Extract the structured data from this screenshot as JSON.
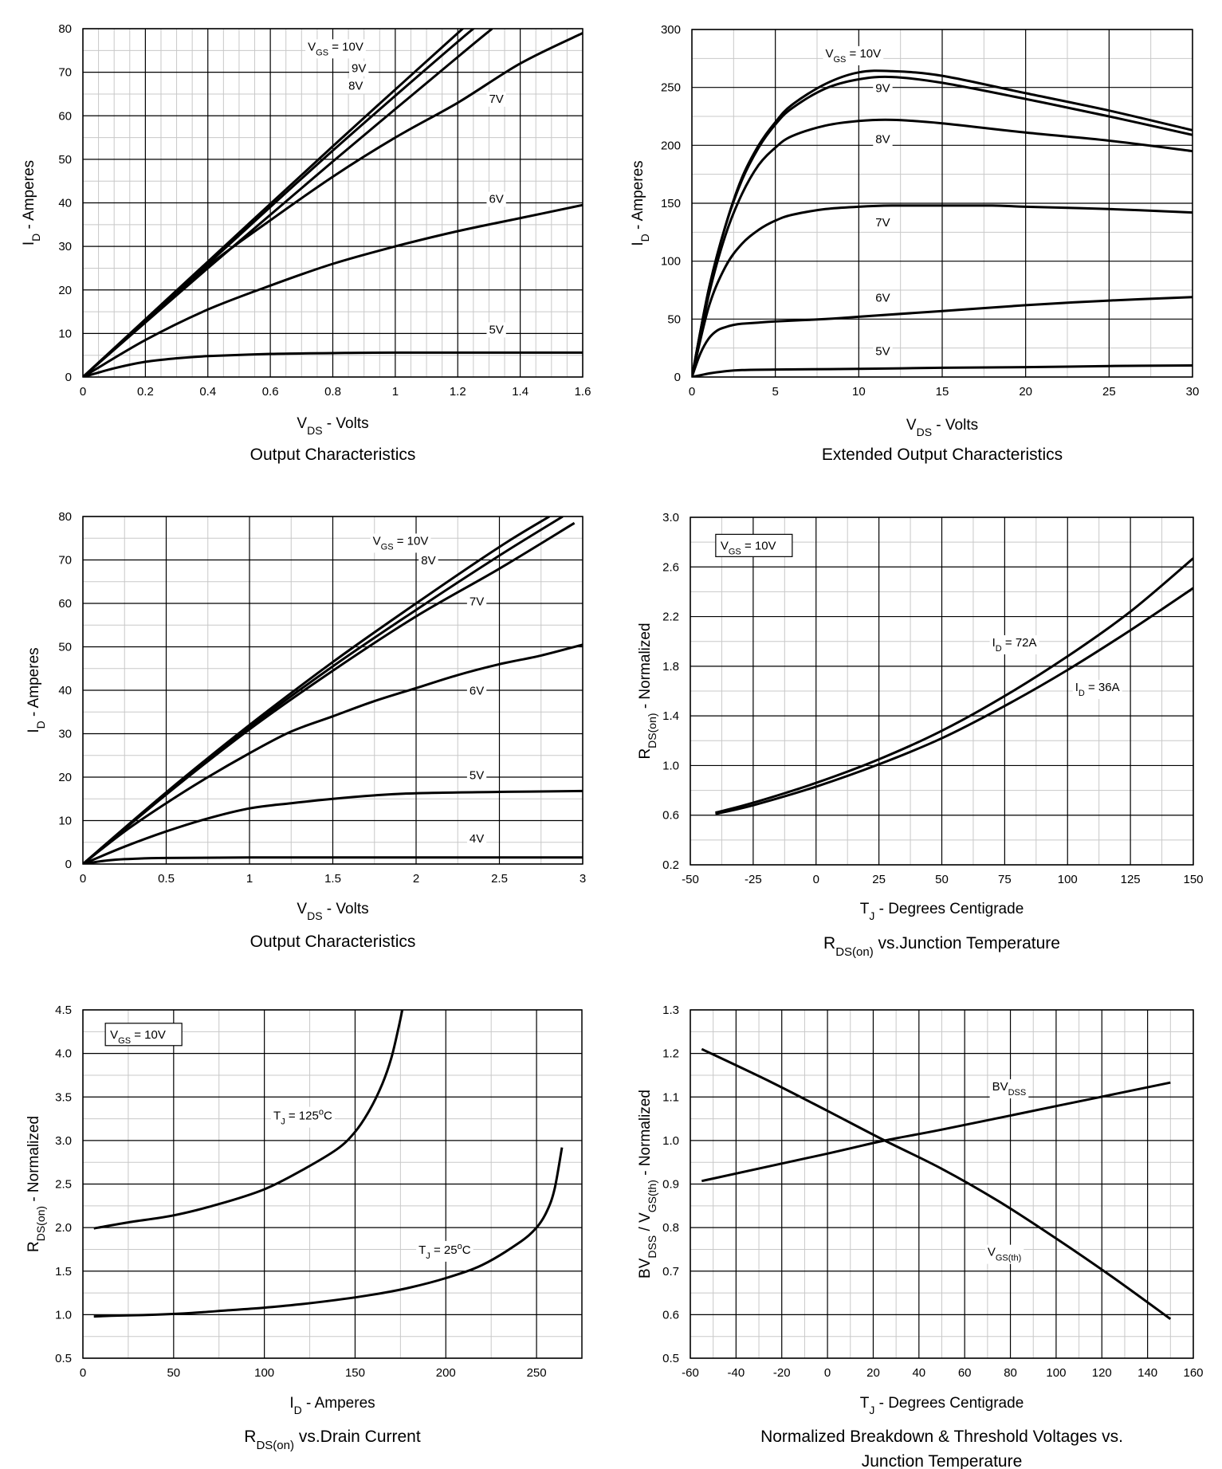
{
  "chart_data": [
    {
      "type": "line",
      "title": "Output Characteristics",
      "xlabel": {
        "main": "V",
        "sub": "DS",
        "rest": " - Volts"
      },
      "ylabel": {
        "main": "I",
        "sub": "D",
        "rest": " - Amperes"
      },
      "xlim": [
        0,
        1.6
      ],
      "ylim": [
        0,
        80
      ],
      "xticks": [
        "0",
        "0.2",
        "0.4",
        "0.6",
        "0.8",
        "1",
        "1.2",
        "1.4",
        "1.6"
      ],
      "xtick_values": [
        0,
        0.2,
        0.4,
        0.6,
        0.8,
        1,
        1.2,
        1.4,
        1.6
      ],
      "yticks": [
        "0",
        "10",
        "20",
        "30",
        "40",
        "50",
        "60",
        "70",
        "80"
      ],
      "ytick_values": [
        0,
        10,
        20,
        30,
        40,
        50,
        60,
        70,
        80
      ],
      "series": [
        {
          "name": "VGS = 10V",
          "x": [
            0,
            0.4,
            0.8,
            1.2,
            1.25
          ],
          "y": [
            0,
            26.5,
            53,
            79,
            82
          ]
        },
        {
          "name": "9V",
          "x": [
            0,
            0.4,
            0.8,
            1.2,
            1.27
          ],
          "y": [
            0,
            26,
            52,
            77,
            81
          ]
        },
        {
          "name": "8V",
          "x": [
            0,
            0.4,
            0.8,
            1.2,
            1.31
          ],
          "y": [
            0,
            25,
            49.5,
            73.5,
            80
          ]
        },
        {
          "name": "7V",
          "x": [
            0,
            0.2,
            0.4,
            0.6,
            0.8,
            1.0,
            1.2,
            1.4,
            1.6
          ],
          "y": [
            0,
            13,
            25.5,
            36,
            46,
            55,
            63,
            72,
            79
          ]
        },
        {
          "name": "6V",
          "x": [
            0,
            0.2,
            0.4,
            0.6,
            0.8,
            1.0,
            1.2,
            1.4,
            1.6
          ],
          "y": [
            0,
            8.5,
            15.5,
            21,
            26,
            30,
            33.5,
            36.5,
            39.5
          ]
        },
        {
          "name": "5V",
          "x": [
            0,
            0.1,
            0.2,
            0.3,
            0.4,
            0.6,
            0.8,
            1.0,
            1.6
          ],
          "y": [
            0,
            2,
            3.5,
            4.3,
            4.8,
            5.3,
            5.5,
            5.6,
            5.6
          ]
        }
      ],
      "annotations": [
        {
          "text": "V",
          "sub": "GS",
          "rest": " = 10V",
          "x": 0.72,
          "y": 75
        },
        {
          "text": "9V",
          "x": 0.86,
          "y": 70
        },
        {
          "text": "8V",
          "x": 0.85,
          "y": 66
        },
        {
          "text": "7V",
          "x": 1.3,
          "y": 63
        },
        {
          "text": "6V",
          "x": 1.3,
          "y": 40
        },
        {
          "text": "5V",
          "x": 1.3,
          "y": 10
        }
      ]
    },
    {
      "type": "line",
      "title": "Extended Output Characteristics",
      "xlabel": {
        "main": "V",
        "sub": "DS",
        "rest": " - Volts"
      },
      "ylabel": {
        "main": "I",
        "sub": "D",
        "rest": " - Amperes"
      },
      "xlim": [
        0,
        30
      ],
      "ylim": [
        0,
        300
      ],
      "xticks": [
        "0",
        "5",
        "10",
        "15",
        "20",
        "25",
        "30"
      ],
      "xtick_values": [
        0,
        5,
        10,
        15,
        20,
        25,
        30
      ],
      "yticks": [
        "0",
        "50",
        "100",
        "150",
        "200",
        "250",
        "300"
      ],
      "ytick_values": [
        0,
        50,
        100,
        150,
        200,
        250,
        300
      ],
      "series": [
        {
          "name": "VGS = 10V",
          "x": [
            0,
            1,
            2,
            3,
            4,
            5,
            6,
            8,
            10,
            12,
            15,
            20,
            25,
            30
          ],
          "y": [
            0,
            75,
            130,
            172,
            200,
            220,
            235,
            253,
            263,
            264,
            260,
            245,
            230,
            213
          ]
        },
        {
          "name": "9V",
          "x": [
            0,
            1,
            2,
            3,
            4,
            5,
            6,
            8,
            10,
            12,
            15,
            20,
            25,
            30
          ],
          "y": [
            0,
            75,
            130,
            170,
            198,
            218,
            232,
            249,
            257,
            259,
            254,
            240,
            225,
            209
          ]
        },
        {
          "name": "8V",
          "x": [
            0,
            1,
            2,
            3,
            4,
            5,
            6,
            8,
            10,
            12,
            15,
            20,
            25,
            30
          ],
          "y": [
            0,
            70,
            122,
            158,
            183,
            198,
            208,
            217,
            221,
            222,
            219,
            211,
            204,
            195
          ]
        },
        {
          "name": "7V",
          "x": [
            0,
            1,
            2,
            3,
            4,
            5,
            6,
            8,
            10,
            12,
            15,
            18,
            20,
            25,
            30
          ],
          "y": [
            0,
            60,
            95,
            115,
            127,
            135,
            140,
            145,
            147,
            148,
            148,
            148,
            147,
            145,
            142
          ]
        },
        {
          "name": "6V",
          "x": [
            0,
            0.5,
            1,
            1.5,
            2,
            2.5,
            3,
            4,
            5,
            8,
            10,
            15,
            20,
            25,
            30
          ],
          "y": [
            0,
            20,
            33,
            40,
            43,
            45,
            46,
            47,
            48,
            50,
            52,
            57,
            62,
            66,
            69
          ]
        },
        {
          "name": "5V",
          "x": [
            0,
            1,
            2,
            3,
            5,
            10,
            15,
            20,
            25,
            30
          ],
          "y": [
            0,
            3,
            5,
            6,
            6.5,
            7,
            8,
            8.5,
            9.5,
            10
          ]
        }
      ],
      "annotations": [
        {
          "text": "V",
          "sub": "GS",
          "rest": " = 10V",
          "x": 8,
          "y": 276
        },
        {
          "text": "9V",
          "x": 11,
          "y": 246
        },
        {
          "text": "8V",
          "x": 11,
          "y": 202
        },
        {
          "text": "7V",
          "x": 11,
          "y": 130
        },
        {
          "text": "6V",
          "x": 11,
          "y": 65
        },
        {
          "text": "5V",
          "x": 11,
          "y": 19
        }
      ]
    },
    {
      "type": "line",
      "title": "Output Characteristics",
      "xlabel": {
        "main": "V",
        "sub": "DS",
        "rest": " - Volts"
      },
      "ylabel": {
        "main": "I",
        "sub": "D",
        "rest": " - Amperes"
      },
      "xlim": [
        0,
        3
      ],
      "ylim": [
        0,
        80
      ],
      "xticks": [
        "0",
        "0.5",
        "1",
        "1.5",
        "2",
        "2.5",
        "3"
      ],
      "xtick_values": [
        0,
        0.5,
        1,
        1.5,
        2,
        2.5,
        3
      ],
      "yticks": [
        "0",
        "10",
        "20",
        "30",
        "40",
        "50",
        "60",
        "70",
        "80"
      ],
      "ytick_values": [
        0,
        10,
        20,
        30,
        40,
        50,
        60,
        70,
        80
      ],
      "series": [
        {
          "name": "VGS = 10V",
          "x": [
            0,
            0.5,
            1,
            1.5,
            2,
            2.5,
            2.8
          ],
          "y": [
            0,
            16.5,
            32,
            46.5,
            60,
            73,
            80
          ]
        },
        {
          "name": "8V",
          "x": [
            0,
            0.5,
            1,
            1.5,
            2,
            2.5,
            2.88
          ],
          "y": [
            0,
            16.3,
            31.5,
            45.5,
            58.5,
            71,
            80
          ]
        },
        {
          "name": "7V",
          "x": [
            0,
            0.5,
            1,
            1.5,
            2,
            2.5,
            2.95
          ],
          "y": [
            0,
            16,
            31,
            44.5,
            57,
            68,
            78.5
          ]
        },
        {
          "name": "6V",
          "x": [
            0,
            0.25,
            0.5,
            0.75,
            1,
            1.25,
            1.5,
            1.75,
            2,
            2.25,
            2.5,
            2.75,
            3
          ],
          "y": [
            0,
            7.5,
            14,
            20,
            25.5,
            30.5,
            34,
            37.5,
            40.5,
            43.5,
            46,
            48,
            50.5
          ]
        },
        {
          "name": "5V",
          "x": [
            0,
            0.25,
            0.5,
            0.75,
            1,
            1.25,
            1.5,
            1.75,
            2,
            2.5,
            3
          ],
          "y": [
            0,
            4,
            7.5,
            10.5,
            12.8,
            14,
            15,
            15.8,
            16.3,
            16.6,
            16.8
          ]
        },
        {
          "name": "4V",
          "x": [
            0,
            0.1,
            0.2,
            0.3,
            0.5,
            1,
            2,
            3
          ],
          "y": [
            0,
            0.6,
            1,
            1.2,
            1.4,
            1.5,
            1.5,
            1.5
          ]
        }
      ],
      "annotations": [
        {
          "text": "V",
          "sub": "GS",
          "rest": " = 10V",
          "x": 1.74,
          "y": 73.5
        },
        {
          "text": "8V",
          "x": 2.03,
          "y": 69
        },
        {
          "text": "7V",
          "x": 2.32,
          "y": 59.5
        },
        {
          "text": "6V",
          "x": 2.32,
          "y": 39
        },
        {
          "text": "5V",
          "x": 2.32,
          "y": 19.5
        },
        {
          "text": "4V",
          "x": 2.32,
          "y": 5
        }
      ]
    },
    {
      "type": "line",
      "title": {
        "main": "R",
        "sub": "DS(on)",
        "rest": "  vs.Junction Temperature"
      },
      "xlabel": {
        "main": "T",
        "sub": "J",
        "rest": " - Degrees Centigrade"
      },
      "ylabel": {
        "main": "R",
        "sub": "DS(on)",
        "rest": " - Normalized"
      },
      "xlim": [
        -50,
        150
      ],
      "ylim": [
        0.2,
        3.0
      ],
      "xticks": [
        "-50",
        "-25",
        "0",
        "25",
        "50",
        "75",
        "100",
        "125",
        "150"
      ],
      "xtick_values": [
        -50,
        -25,
        0,
        25,
        50,
        75,
        100,
        125,
        150
      ],
      "yticks": [
        "0.2",
        "0.6",
        "1.0",
        "1.4",
        "1.8",
        "2.2",
        "2.6",
        "3.0"
      ],
      "ytick_values": [
        0.2,
        0.6,
        1.0,
        1.4,
        1.8,
        2.2,
        2.6,
        3.0
      ],
      "series": [
        {
          "name": "ID = 72A",
          "x": [
            -40,
            -25,
            0,
            25,
            50,
            75,
            100,
            125,
            150
          ],
          "y": [
            0.62,
            0.7,
            0.86,
            1.05,
            1.28,
            1.56,
            1.88,
            2.24,
            2.67
          ]
        },
        {
          "name": "ID = 36A",
          "x": [
            -40,
            -25,
            0,
            25,
            50,
            75,
            100,
            125,
            150
          ],
          "y": [
            0.61,
            0.68,
            0.83,
            1.01,
            1.22,
            1.48,
            1.77,
            2.09,
            2.43
          ]
        }
      ],
      "legend_box": {
        "text": "V",
        "sub": "GS",
        "rest": " = 10V",
        "x": -38,
        "y": 2.76
      },
      "annotations": [
        {
          "text": "I",
          "sub": "D",
          "rest": " = 72A",
          "x": 70,
          "y": 1.96
        },
        {
          "text": "I",
          "sub": "D",
          "rest": " = 36A",
          "x": 103,
          "y": 1.6
        }
      ]
    },
    {
      "type": "line",
      "title": {
        "main": "R",
        "sub": "DS(on)",
        "rest": " vs.Drain Current"
      },
      "xlabel": {
        "main": "I",
        "sub": "D",
        "rest": " - Amperes"
      },
      "ylabel": {
        "main": "R",
        "sub": "DS(on)",
        "rest": " - Normalized"
      },
      "xlim": [
        0,
        275
      ],
      "ylim": [
        0.5,
        4.5
      ],
      "xticks": [
        "0",
        "50",
        "100",
        "150",
        "200",
        "250"
      ],
      "xtick_values": [
        0,
        50,
        100,
        150,
        200,
        250
      ],
      "yticks": [
        "0.5",
        "1.0",
        "1.5",
        "2.0",
        "2.5",
        "3.0",
        "3.5",
        "4.0",
        "4.5"
      ],
      "ytick_values": [
        0.5,
        1.0,
        1.5,
        2.0,
        2.5,
        3.0,
        3.5,
        4.0,
        4.5
      ],
      "series": [
        {
          "name": "TJ = 125oC",
          "x": [
            6,
            25,
            50,
            75,
            100,
            120,
            140,
            150,
            158,
            165,
            170,
            174,
            176.5
          ],
          "y": [
            1.99,
            2.06,
            2.14,
            2.27,
            2.44,
            2.65,
            2.9,
            3.1,
            3.35,
            3.65,
            3.95,
            4.3,
            4.55
          ]
        },
        {
          "name": "TJ = 25oC",
          "x": [
            6,
            20,
            40,
            60,
            80,
            100,
            120,
            140,
            160,
            180,
            200,
            220,
            240,
            250,
            256,
            260,
            264
          ],
          "y": [
            0.98,
            0.99,
            1.0,
            1.02,
            1.05,
            1.08,
            1.12,
            1.17,
            1.23,
            1.31,
            1.42,
            1.57,
            1.82,
            2.0,
            2.2,
            2.45,
            2.92
          ]
        }
      ],
      "legend_box": {
        "text": "V",
        "sub": "GS",
        "rest": " = 10V",
        "x": 15,
        "y": 4.2
      },
      "annotations": [
        {
          "text": "T",
          "sub": "J",
          "rest": " = 125",
          "sup": "o",
          "tail": "C",
          "x": 105,
          "y": 3.24
        },
        {
          "text": "T",
          "sub": "J",
          "rest": " = 25",
          "sup": "o",
          "tail": "C",
          "x": 185,
          "y": 1.7
        }
      ]
    },
    {
      "type": "line",
      "title": {
        "line1": "Normalized Breakdown & Threshold Voltages vs.",
        "line2": "Junction Temperature"
      },
      "xlabel": {
        "main": "T",
        "sub": "J",
        "rest": " - Degrees Centigrade"
      },
      "ylabel": {
        "main": "BV",
        "sub": "DSS",
        "rest": " / V",
        "sub2": "GS(th)",
        "rest2": " - Normalized"
      },
      "xlim": [
        -60,
        160
      ],
      "ylim": [
        0.5,
        1.3
      ],
      "xticks": [
        "-60",
        "-40",
        "-20",
        "0",
        "20",
        "40",
        "60",
        "80",
        "100",
        "120",
        "140",
        "160"
      ],
      "xtick_values": [
        -60,
        -40,
        -20,
        0,
        20,
        40,
        60,
        80,
        100,
        120,
        140,
        160
      ],
      "yticks": [
        "0.5",
        "0.6",
        "0.7",
        "0.8",
        "0.9",
        "1.0",
        "1.1",
        "1.2",
        "1.3"
      ],
      "ytick_values": [
        0.5,
        0.6,
        0.7,
        0.8,
        0.9,
        1.0,
        1.1,
        1.2,
        1.3
      ],
      "series": [
        {
          "name": "BVDSS",
          "x": [
            -55,
            0,
            25,
            50,
            100,
            150
          ],
          "y": [
            0.907,
            0.97,
            1.0,
            1.025,
            1.079,
            1.133
          ]
        },
        {
          "name": "VGS(th)",
          "x": [
            -55,
            -25,
            0,
            25,
            50,
            75,
            100,
            125,
            150
          ],
          "y": [
            1.21,
            1.135,
            1.068,
            1.0,
            0.935,
            0.86,
            0.775,
            0.685,
            0.59
          ]
        }
      ],
      "annotations": [
        {
          "text": "BV",
          "sub": "DSS",
          "rest": "",
          "x": 72,
          "y": 1.115
        },
        {
          "text": "V",
          "sub": "GS(th)",
          "rest": "",
          "x": 70,
          "y": 0.735
        }
      ]
    }
  ]
}
